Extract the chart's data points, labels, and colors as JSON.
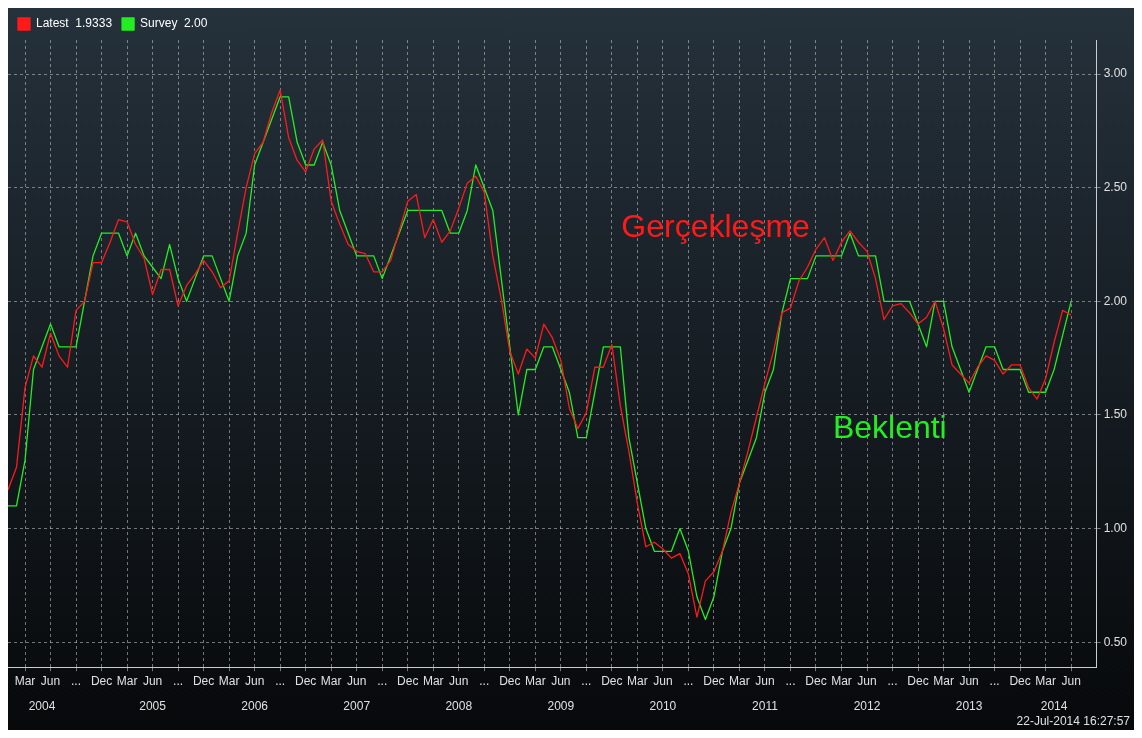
{
  "chart_data": {
    "type": "line",
    "x": [
      "2004-01",
      "2004-02",
      "2004-03",
      "2004-04",
      "2004-05",
      "2004-06",
      "2004-07",
      "2004-08",
      "2004-09",
      "2004-10",
      "2004-11",
      "2004-12",
      "2005-01",
      "2005-02",
      "2005-03",
      "2005-04",
      "2005-05",
      "2005-06",
      "2005-07",
      "2005-08",
      "2005-09",
      "2005-10",
      "2005-11",
      "2005-12",
      "2006-01",
      "2006-02",
      "2006-03",
      "2006-04",
      "2006-05",
      "2006-06",
      "2006-07",
      "2006-08",
      "2006-09",
      "2006-10",
      "2006-11",
      "2006-12",
      "2007-01",
      "2007-02",
      "2007-03",
      "2007-04",
      "2007-05",
      "2007-06",
      "2007-07",
      "2007-08",
      "2007-09",
      "2007-10",
      "2007-11",
      "2007-12",
      "2008-01",
      "2008-02",
      "2008-03",
      "2008-04",
      "2008-05",
      "2008-06",
      "2008-07",
      "2008-08",
      "2008-09",
      "2008-10",
      "2008-11",
      "2008-12",
      "2009-01",
      "2009-02",
      "2009-03",
      "2009-04",
      "2009-05",
      "2009-06",
      "2009-07",
      "2009-08",
      "2009-09",
      "2009-10",
      "2009-11",
      "2009-12",
      "2010-01",
      "2010-02",
      "2010-03",
      "2010-04",
      "2010-05",
      "2010-06",
      "2010-07",
      "2010-08",
      "2010-09",
      "2010-10",
      "2010-11",
      "2010-12",
      "2011-01",
      "2011-02",
      "2011-03",
      "2011-04",
      "2011-05",
      "2011-06",
      "2011-07",
      "2011-08",
      "2011-09",
      "2011-10",
      "2011-11",
      "2011-12",
      "2012-01",
      "2012-02",
      "2012-03",
      "2012-04",
      "2012-05",
      "2012-06",
      "2012-07",
      "2012-08",
      "2012-09",
      "2012-10",
      "2012-11",
      "2012-12",
      "2013-01",
      "2013-02",
      "2013-03",
      "2013-04",
      "2013-05",
      "2013-06",
      "2013-07",
      "2013-08",
      "2013-09",
      "2013-10",
      "2013-11",
      "2013-12",
      "2014-01",
      "2014-02",
      "2014-03",
      "2014-04",
      "2014-05",
      "2014-06"
    ],
    "series": [
      {
        "name": "Latest  1.9333",
        "color": "#ff1a1a",
        "values": [
          1.17,
          1.27,
          1.62,
          1.76,
          1.71,
          1.86,
          1.76,
          1.71,
          1.96,
          2.0,
          2.17,
          2.17,
          2.26,
          2.36,
          2.35,
          2.25,
          2.19,
          2.03,
          2.14,
          2.14,
          1.98,
          2.07,
          2.12,
          2.18,
          2.13,
          2.06,
          2.09,
          2.3,
          2.5,
          2.65,
          2.7,
          2.83,
          2.93,
          2.72,
          2.62,
          2.57,
          2.67,
          2.71,
          2.44,
          2.34,
          2.25,
          2.22,
          2.21,
          2.13,
          2.13,
          2.18,
          2.31,
          2.44,
          2.47,
          2.28,
          2.36,
          2.26,
          2.31,
          2.41,
          2.52,
          2.55,
          2.48,
          2.2,
          2.01,
          1.78,
          1.68,
          1.79,
          1.75,
          1.9,
          1.84,
          1.74,
          1.53,
          1.44,
          1.51,
          1.71,
          1.71,
          1.81,
          1.54,
          1.34,
          1.11,
          0.92,
          0.94,
          0.91,
          0.87,
          0.89,
          0.8,
          0.61,
          0.77,
          0.81,
          0.9,
          1.07,
          1.2,
          1.34,
          1.49,
          1.64,
          1.78,
          1.95,
          1.97,
          2.09,
          2.15,
          2.23,
          2.28,
          2.18,
          2.26,
          2.31,
          2.26,
          2.22,
          2.1,
          1.92,
          1.98,
          1.99,
          1.95,
          1.9,
          1.93,
          2.0,
          1.88,
          1.72,
          1.68,
          1.64,
          1.71,
          1.76,
          1.74,
          1.68,
          1.72,
          1.72,
          1.62,
          1.57,
          1.66,
          1.82,
          1.96,
          1.94
        ]
      },
      {
        "name": "Survey  2.00",
        "color": "#22ee22",
        "values": [
          1.1,
          1.1,
          1.3,
          1.7,
          1.8,
          1.9,
          1.8,
          1.8,
          1.8,
          2.0,
          2.2,
          2.3,
          2.3,
          2.3,
          2.2,
          2.3,
          2.2,
          2.15,
          2.1,
          2.25,
          2.1,
          2.0,
          2.1,
          2.2,
          2.2,
          2.1,
          2.0,
          2.2,
          2.3,
          2.6,
          2.7,
          2.8,
          2.9,
          2.9,
          2.7,
          2.6,
          2.6,
          2.7,
          2.6,
          2.4,
          2.3,
          2.2,
          2.2,
          2.2,
          2.1,
          2.2,
          2.3,
          2.4,
          2.4,
          2.4,
          2.4,
          2.4,
          2.3,
          2.3,
          2.4,
          2.6,
          2.5,
          2.4,
          2.1,
          1.8,
          1.5,
          1.7,
          1.7,
          1.8,
          1.8,
          1.7,
          1.6,
          1.4,
          1.4,
          1.6,
          1.8,
          1.8,
          1.8,
          1.4,
          1.2,
          1.0,
          0.9,
          0.9,
          0.9,
          1.0,
          0.9,
          0.7,
          0.6,
          0.7,
          0.9,
          1.0,
          1.2,
          1.3,
          1.4,
          1.6,
          1.7,
          1.95,
          2.1,
          2.1,
          2.1,
          2.2,
          2.2,
          2.2,
          2.2,
          2.3,
          2.2,
          2.2,
          2.2,
          2.0,
          2.0,
          2.0,
          2.0,
          1.9,
          1.8,
          2.0,
          2.0,
          1.8,
          1.7,
          1.6,
          1.7,
          1.8,
          1.8,
          1.7,
          1.7,
          1.7,
          1.6,
          1.6,
          1.6,
          1.7,
          1.85,
          2.0
        ]
      }
    ],
    "xlim": [
      "2004-01",
      "2014-09"
    ],
    "xticks": [
      {
        "value": "2004-03",
        "label": "Mar"
      },
      {
        "value": "2004-06",
        "label": "Jun"
      },
      {
        "value": "2004-09",
        "label": "..."
      },
      {
        "value": "2004-12",
        "label": "Dec"
      },
      {
        "value": "2005-03",
        "label": "Mar"
      },
      {
        "value": "2005-06",
        "label": "Jun"
      },
      {
        "value": "2005-09",
        "label": "..."
      },
      {
        "value": "2005-12",
        "label": "Dec"
      },
      {
        "value": "2006-03",
        "label": "Mar"
      },
      {
        "value": "2006-06",
        "label": "Jun"
      },
      {
        "value": "2006-09",
        "label": "..."
      },
      {
        "value": "2006-12",
        "label": "Dec"
      },
      {
        "value": "2007-03",
        "label": "Mar"
      },
      {
        "value": "2007-06",
        "label": "Jun"
      },
      {
        "value": "2007-09",
        "label": "..."
      },
      {
        "value": "2007-12",
        "label": "Dec"
      },
      {
        "value": "2008-03",
        "label": "Mar"
      },
      {
        "value": "2008-06",
        "label": "Jun"
      },
      {
        "value": "2008-09",
        "label": "..."
      },
      {
        "value": "2008-12",
        "label": "Dec"
      },
      {
        "value": "2009-03",
        "label": "Mar"
      },
      {
        "value": "2009-06",
        "label": "Jun"
      },
      {
        "value": "2009-09",
        "label": "..."
      },
      {
        "value": "2009-12",
        "label": "Dec"
      },
      {
        "value": "2010-03",
        "label": "Mar"
      },
      {
        "value": "2010-06",
        "label": "Jun"
      },
      {
        "value": "2010-09",
        "label": "..."
      },
      {
        "value": "2010-12",
        "label": "Dec"
      },
      {
        "value": "2011-03",
        "label": "Mar"
      },
      {
        "value": "2011-06",
        "label": "Jun"
      },
      {
        "value": "2011-09",
        "label": "..."
      },
      {
        "value": "2011-12",
        "label": "Dec"
      },
      {
        "value": "2012-03",
        "label": "Mar"
      },
      {
        "value": "2012-06",
        "label": "Jun"
      },
      {
        "value": "2012-09",
        "label": "..."
      },
      {
        "value": "2012-12",
        "label": "Dec"
      },
      {
        "value": "2013-03",
        "label": "Mar"
      },
      {
        "value": "2013-06",
        "label": "Jun"
      },
      {
        "value": "2013-09",
        "label": "..."
      },
      {
        "value": "2013-12",
        "label": "Dec"
      },
      {
        "value": "2014-03",
        "label": "Mar"
      },
      {
        "value": "2014-06",
        "label": "Jun"
      }
    ],
    "x2lim": [
      "2004-01",
      "2014-09"
    ],
    "x2ticks": [
      {
        "value": "2004-05",
        "label": "2004"
      },
      {
        "value": "2005-06",
        "label": "2005"
      },
      {
        "value": "2006-06",
        "label": "2006"
      },
      {
        "value": "2007-06",
        "label": "2007"
      },
      {
        "value": "2008-06",
        "label": "2008"
      },
      {
        "value": "2009-06",
        "label": "2009"
      },
      {
        "value": "2010-06",
        "label": "2010"
      },
      {
        "value": "2011-06",
        "label": "2011"
      },
      {
        "value": "2012-06",
        "label": "2012"
      },
      {
        "value": "2013-06",
        "label": "2013"
      },
      {
        "value": "2014-04",
        "label": "2014"
      }
    ],
    "ylim": [
      0.39,
      3.15
    ],
    "yticks": [
      {
        "value": 0.5,
        "label": "0.50"
      },
      {
        "value": 1,
        "label": "1.00"
      },
      {
        "value": 1.5,
        "label": "1.50"
      },
      {
        "value": 2,
        "label": "2.00"
      },
      {
        "value": 2.5,
        "label": "2.50"
      },
      {
        "value": 3,
        "label": "3.00"
      }
    ],
    "grid": true,
    "legend": "top left",
    "marker": "none",
    "line_style": "solid",
    "annotations": [
      "Gerçekleşme",
      "Beklenti",
      "22-Jul-2014 16:27:57"
    ]
  }
}
